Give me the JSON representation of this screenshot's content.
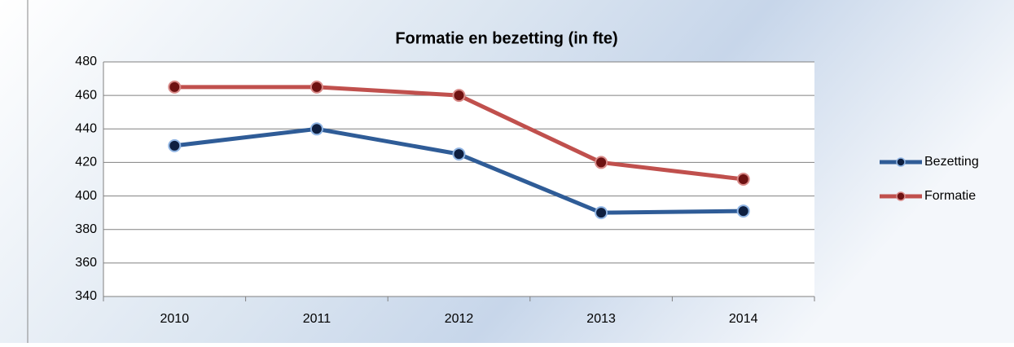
{
  "chart_data": {
    "type": "line",
    "title": "Formatie en bezetting (in fte)",
    "categories": [
      "2010",
      "2011",
      "2012",
      "2013",
      "2014"
    ],
    "series": [
      {
        "name": "Bezetting",
        "color": "#2f5c97",
        "values": [
          430,
          440,
          425,
          390,
          391
        ]
      },
      {
        "name": "Formatie",
        "color": "#c0504d",
        "values": [
          465,
          465,
          460,
          420,
          410
        ]
      }
    ],
    "ylim": [
      340,
      480
    ],
    "yticks": [
      340,
      360,
      380,
      400,
      420,
      440,
      460,
      480
    ],
    "grid": true,
    "legend": "right"
  }
}
